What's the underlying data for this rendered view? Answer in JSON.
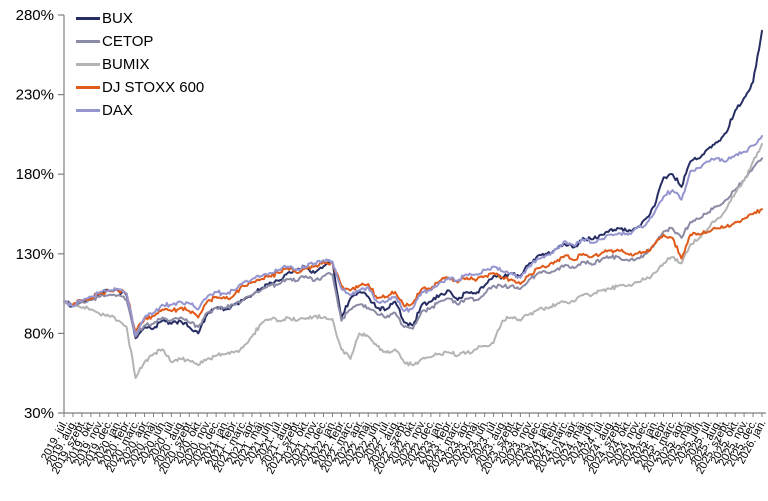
{
  "chart_data": {
    "type": "line",
    "title": "",
    "xlabel": "",
    "ylabel": "",
    "ylim": [
      30,
      280
    ],
    "y_ticks": [
      30,
      80,
      130,
      180,
      230,
      280
    ],
    "y_tick_format": "{v}%",
    "grid": false,
    "legend_position": "top-left",
    "axis_color": "#7f7f7f",
    "text_color": "#000000",
    "x_labels": [
      "2019. júl.",
      "2019. aug.",
      "2019. szept.",
      "2019. okt.",
      "2019. nov.",
      "2019. dec.",
      "2020. jan.",
      "2020. febr.",
      "2020. márc.",
      "2020. ápr.",
      "2020. máj.",
      "2020. jún.",
      "2020. júl.",
      "2020. aug.",
      "2020. szept.",
      "2020. okt.",
      "2020. nov.",
      "2020. dec.",
      "2021. jan.",
      "2021. febr.",
      "2021. márc.",
      "2021. ápr.",
      "2021. máj.",
      "2021. jún.",
      "2021. júl.",
      "2021. aug.",
      "2021. szept.",
      "2021. okt.",
      "2021. nov.",
      "2021. dec.",
      "2022. jan.",
      "2022. febr.",
      "2022. márc.",
      "2022. ápr.",
      "2022. máj.",
      "2022. jún.",
      "2022. júl.",
      "2022. aug.",
      "2022. szept.",
      "2022. okt.",
      "2022. nov.",
      "2022. dec.",
      "2023. jan.",
      "2023. febr.",
      "2023. márc.",
      "2023. ápr.",
      "2023. máj.",
      "2023. jún.",
      "2023. júl.",
      "2023. aug.",
      "2023. szept.",
      "2023. okt.",
      "2023. nov.",
      "2023. dec.",
      "2024. jan.",
      "2024. febr.",
      "2024. márc.",
      "2024. ápr.",
      "2024. máj.",
      "2024. jún.",
      "2024. júl.",
      "2024. aug.",
      "2024. szept.",
      "2024. okt.",
      "2024. nov.",
      "2024. dec.",
      "2025. jan.",
      "2025. febr.",
      "2025. márc.",
      "2025. ápr.",
      "2025. máj.",
      "2025. jún.",
      "2025. júl.",
      "2025. aug.",
      "2025. szept.",
      "2025. okt.",
      "2025. nov.",
      "2025. dec.",
      "2026. jan."
    ],
    "series": [
      {
        "name": "BUX",
        "color": "#272e63",
        "values": [
          100,
          97,
          100,
          102,
          105,
          107,
          107,
          104,
          77,
          84,
          83,
          88,
          86,
          88,
          84,
          80,
          92,
          96,
          95,
          98,
          101,
          104,
          108,
          112,
          113,
          118,
          120,
          122,
          118,
          122,
          125,
          90,
          102,
          106,
          103,
          96,
          95,
          100,
          87,
          85,
          98,
          100,
          104,
          107,
          101,
          106,
          105,
          110,
          116,
          115,
          118,
          116,
          124,
          129,
          130,
          133,
          136,
          134,
          140,
          139,
          142,
          145,
          146,
          144,
          146,
          152,
          160,
          178,
          180,
          172,
          188,
          190,
          196,
          200,
          206,
          220,
          228,
          238,
          270
        ]
      },
      {
        "name": "CETOP",
        "color": "#8b8ba6",
        "values": [
          100,
          97,
          100,
          101,
          103,
          104,
          104,
          101,
          78,
          85,
          86,
          90,
          88,
          90,
          87,
          84,
          93,
          96,
          96,
          98,
          101,
          104,
          107,
          110,
          111,
          114,
          113,
          116,
          113,
          116,
          117,
          88,
          95,
          98,
          96,
          92,
          90,
          93,
          84,
          83,
          94,
          96,
          100,
          102,
          98,
          102,
          101,
          105,
          110,
          109,
          110,
          108,
          114,
          118,
          118,
          120,
          123,
          121,
          125,
          123,
          126,
          128,
          128,
          126,
          127,
          130,
          136,
          144,
          146,
          140,
          150,
          152,
          156,
          160,
          164,
          170,
          176,
          184,
          190
        ]
      },
      {
        "name": "BUMIX",
        "color": "#b4b4b4",
        "values": [
          100,
          97,
          96,
          95,
          92,
          91,
          88,
          84,
          52,
          62,
          67,
          70,
          62,
          64,
          63,
          60,
          64,
          66,
          67,
          68,
          71,
          78,
          86,
          89,
          88,
          90,
          88,
          89,
          91,
          90,
          89,
          70,
          64,
          80,
          78,
          72,
          68,
          70,
          62,
          60,
          64,
          65,
          67,
          68,
          66,
          68,
          70,
          72,
          74,
          88,
          90,
          88,
          92,
          95,
          96,
          98,
          100,
          100,
          104,
          104,
          107,
          108,
          110,
          110,
          112,
          114,
          118,
          124,
          128,
          124,
          136,
          140,
          146,
          152,
          158,
          168,
          176,
          188,
          199
        ]
      },
      {
        "name": "DJ STOXX 600",
        "color": "#e05a1a",
        "values": [
          100,
          98,
          101,
          102,
          105,
          107,
          107,
          105,
          81,
          89,
          91,
          95,
          94,
          96,
          94,
          90,
          100,
          103,
          102,
          104,
          110,
          112,
          114,
          116,
          118,
          121,
          118,
          121,
          122,
          125,
          124,
          110,
          107,
          110,
          111,
          102,
          103,
          106,
          97,
          99,
          108,
          108,
          113,
          115,
          112,
          115,
          113,
          116,
          118,
          115,
          114,
          111,
          117,
          121,
          122,
          125,
          129,
          126,
          130,
          128,
          130,
          132,
          132,
          130,
          130,
          131,
          136,
          142,
          140,
          127,
          142,
          142,
          144,
          146,
          147,
          150,
          152,
          155,
          158
        ]
      },
      {
        "name": "DAX",
        "color": "#9595d0",
        "values": [
          100,
          97,
          101,
          103,
          106,
          107,
          108,
          105,
          79,
          90,
          93,
          98,
          98,
          100,
          99,
          95,
          103,
          106,
          105,
          107,
          112,
          114,
          116,
          118,
          120,
          122,
          120,
          122,
          124,
          126,
          125,
          108,
          104,
          107,
          109,
          100,
          100,
          103,
          94,
          96,
          106,
          107,
          112,
          115,
          113,
          117,
          117,
          120,
          122,
          119,
          118,
          115,
          122,
          127,
          129,
          133,
          138,
          135,
          139,
          137,
          139,
          142,
          143,
          142,
          146,
          148,
          156,
          166,
          170,
          164,
          182,
          184,
          188,
          190,
          188,
          192,
          194,
          198,
          204
        ]
      }
    ]
  }
}
